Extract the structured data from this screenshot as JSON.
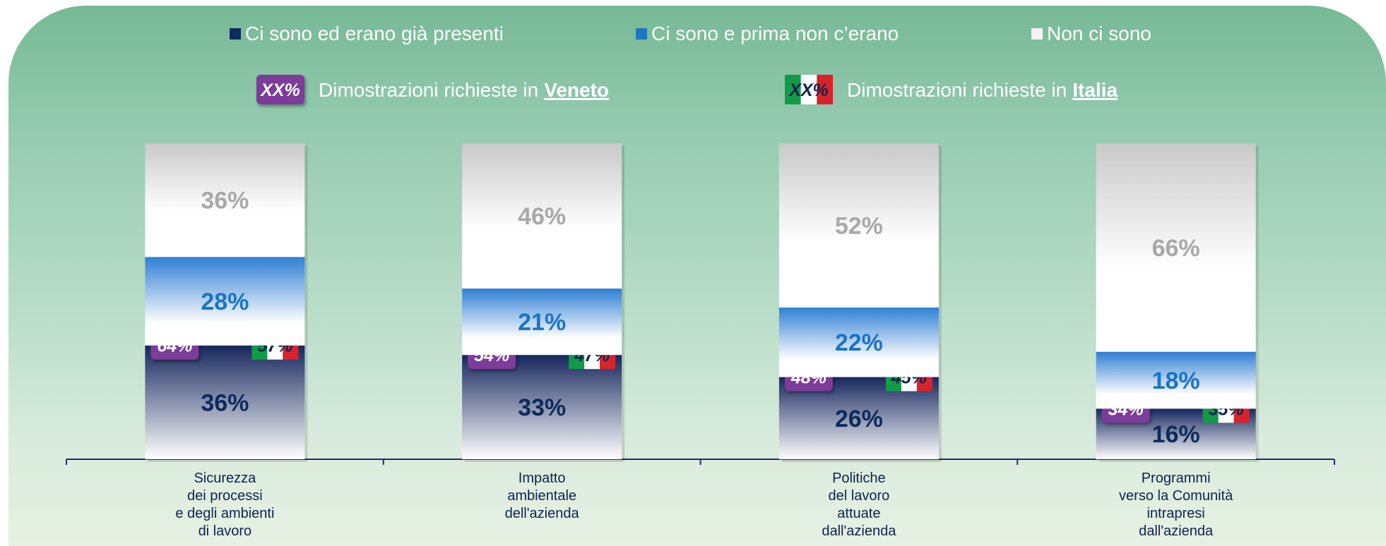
{
  "chart_data": {
    "type": "bar",
    "stacked": true,
    "categories": [
      "Sicurezza\ndei processi\ne degli ambienti\ndi lavoro",
      "Impatto\nambientale\ndell'azienda",
      "Politiche\ndel lavoro\nattuate\ndall'azienda",
      "Programmi\nverso la Comunità\nintrapresi\ndall'azienda"
    ],
    "ylim": [
      0,
      100
    ],
    "series": [
      {
        "name": "Ci sono ed erano già presenti",
        "color": "#0e2a5e",
        "values": [
          36,
          33,
          26,
          16
        ],
        "value_labels": [
          "36%",
          "33%",
          "26%",
          "16%"
        ]
      },
      {
        "name": "Ci sono e prima non c’erano",
        "color": "#1f77c4",
        "values": [
          28,
          21,
          22,
          18
        ],
        "value_labels": [
          "28%",
          "21%",
          "22%",
          "18%"
        ]
      },
      {
        "name": "Non ci sono",
        "color": "#f2f2f2",
        "values": [
          36,
          46,
          52,
          66
        ],
        "value_labels": [
          "36%",
          "46%",
          "52%",
          "66%"
        ]
      }
    ],
    "markers": [
      {
        "name": "Dimostrazioni richieste in",
        "place": "Veneto",
        "badge": "XX%",
        "style": "purple",
        "values": [
          64,
          54,
          48,
          34
        ],
        "value_labels": [
          "64%",
          "54%",
          "48%",
          "34%"
        ]
      },
      {
        "name": "Dimostrazioni richieste in",
        "place": "Italia",
        "badge": "XX%",
        "style": "flag",
        "values": [
          57,
          47,
          45,
          35
        ],
        "value_labels": [
          "57%",
          "47%",
          "45%",
          "35%"
        ]
      }
    ]
  }
}
